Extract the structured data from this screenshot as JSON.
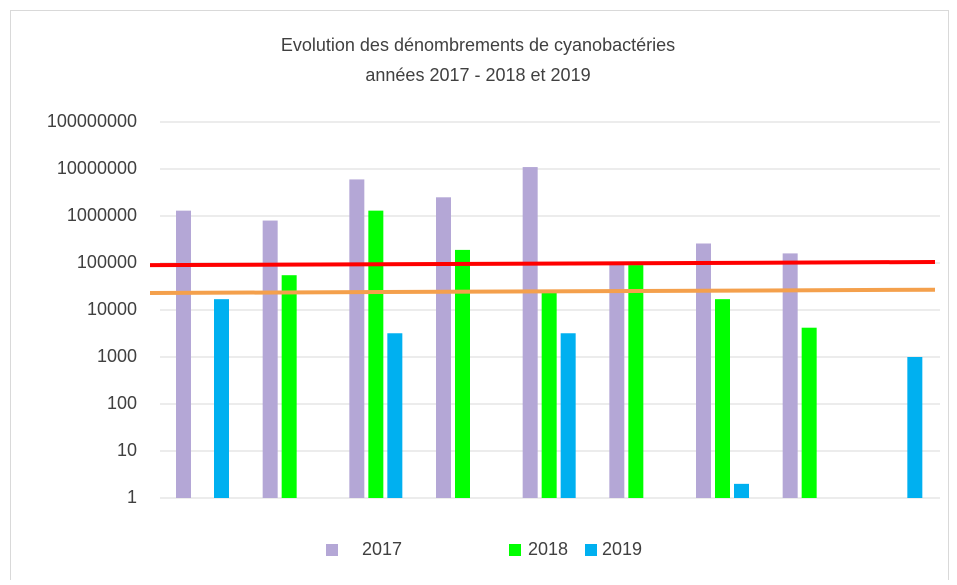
{
  "chart_data": {
    "type": "bar",
    "title": "Evolution des dénombrements de cyanobactéries",
    "subtitle": "années 2017 - 2018 et 2019",
    "categories": [
      null,
      null,
      null,
      null,
      null,
      null,
      null,
      null,
      null
    ],
    "series": [
      {
        "name": "2017",
        "color": "#b4a7d6",
        "values": [
          1300000,
          800000,
          6000000,
          2500000,
          11000000,
          95000,
          260000,
          160000,
          null
        ]
      },
      {
        "name": "2018",
        "color": "#00ff00",
        "values": [
          null,
          55000,
          1300000,
          190000,
          23000,
          90000,
          17000,
          4200,
          null
        ]
      },
      {
        "name": "2019",
        "color": "#00b0f0",
        "values": [
          17000,
          null,
          3200,
          null,
          3200,
          null,
          2,
          null,
          1000
        ]
      }
    ],
    "reference_lines": [
      {
        "color": "#ff0000",
        "values": [
          90000,
          105000
        ]
      },
      {
        "color": "#f4a04c",
        "values": [
          23000,
          27000
        ]
      }
    ],
    "log": true,
    "ylim": [
      1,
      100000000
    ],
    "yticks": [
      1,
      10,
      100,
      1000,
      10000,
      100000,
      1000000,
      10000000,
      100000000
    ],
    "grid": true,
    "legend": "bottom"
  }
}
